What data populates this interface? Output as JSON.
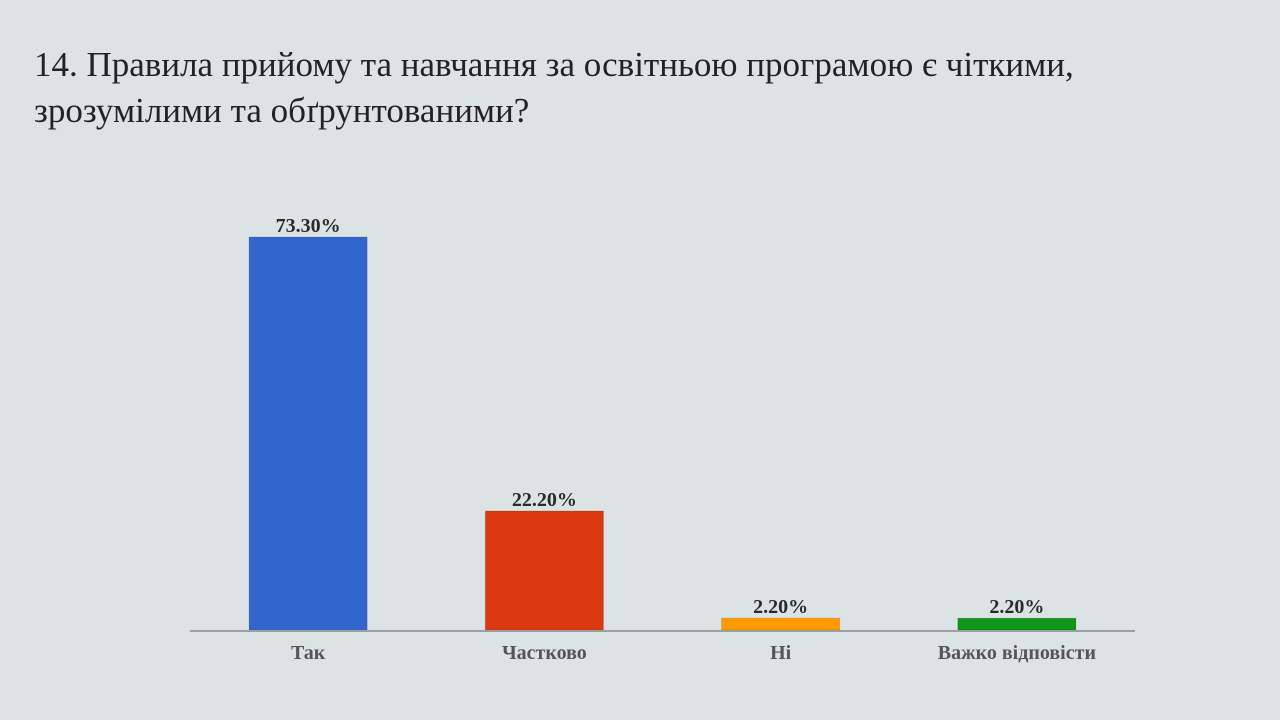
{
  "slide": {
    "title": "14.  Правила прийому та навчання за освітньою програмою є чіткими, зрозумілими та обґрунтованими?"
  },
  "chart_data": {
    "type": "bar",
    "title": "",
    "xlabel": "",
    "ylabel": "",
    "categories": [
      "Так",
      "Частково",
      "Ні",
      "Важко відповісти"
    ],
    "values": [
      73.3,
      22.2,
      2.2,
      2.2
    ],
    "value_labels": [
      "73.30%",
      "22.20%",
      "2.20%",
      "2.20%"
    ],
    "colors": [
      "#3366cc",
      "#dc3912",
      "#ff9900",
      "#109618"
    ],
    "ylim": [
      0,
      73.3
    ],
    "grid": false,
    "legend": "none"
  }
}
